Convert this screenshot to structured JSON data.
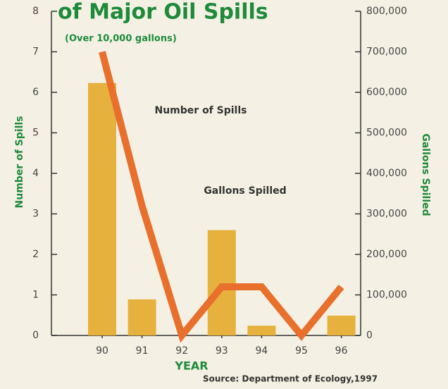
{
  "chart_data": {
    "type": "bar_line",
    "title": "of Major Oil Spills",
    "subtitle": "(Over 10,000 gallons)",
    "annotations": [
      "Number of Spills",
      "Gallons Spilled"
    ],
    "x_label": "YEAR",
    "y_label": "Number of Spills",
    "y2_label": "Gallons Spilled",
    "source": "Source: Department of Ecology,1997",
    "categories": [
      "90",
      "91",
      "92",
      "93",
      "94",
      "95",
      "96"
    ],
    "series": [
      {
        "name": "Gallons Spilled",
        "type": "bar",
        "axis": "y2",
        "color": "#e6b13c",
        "values": [
          623000,
          89000,
          0,
          260000,
          24000,
          0,
          49000
        ]
      },
      {
        "name": "Number of Spills",
        "type": "line",
        "axis": "y",
        "color": "#e8702c",
        "values": [
          7,
          3.2,
          0,
          1.2,
          1.2,
          0,
          1.2
        ]
      }
    ],
    "ylim": [
      0,
      8
    ],
    "yticks": [
      0,
      1,
      2,
      3,
      4,
      5,
      6,
      7,
      8
    ],
    "y2lim": [
      0,
      800000
    ],
    "y2ticks": [
      0,
      {
        "value": 100000,
        "label": "100,000"
      },
      {
        "value": 200000,
        "label": "200,000"
      },
      {
        "value": 300000,
        "label": "300,000"
      },
      {
        "value": 400000,
        "label": "400,000"
      },
      {
        "value": 500000,
        "label": "500,000"
      },
      {
        "value": 600000,
        "label": "600,000"
      },
      {
        "value": 700000,
        "label": "700,000"
      },
      {
        "value": 800000,
        "label": "800,000"
      }
    ]
  }
}
